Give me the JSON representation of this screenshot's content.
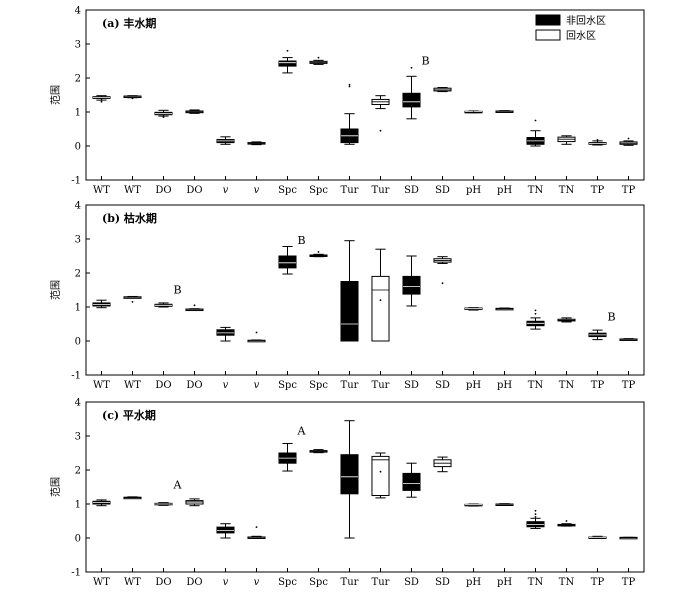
{
  "legend": {
    "placement": "top-right",
    "entries": [
      {
        "name": "非回水区",
        "color": "#000000"
      },
      {
        "name": "回水区",
        "color": "#ffffff"
      }
    ]
  },
  "chart_data": [
    {
      "type": "box",
      "title": "(a) 丰水期",
      "ylabel": "范围",
      "ylim": [
        -1,
        4
      ],
      "yticks": [
        -1,
        0,
        1,
        2,
        3,
        4
      ],
      "grid": false,
      "categories": [
        "WT",
        "WT",
        "DO",
        "DO",
        "v",
        "v",
        "Spc",
        "Spc",
        "Tur",
        "Tur",
        "SD",
        "SD",
        "pH",
        "pH",
        "TN",
        "TN",
        "TP",
        "TP"
      ],
      "series": [
        {
          "name": "非回水区",
          "color": "#000000",
          "boxes": [
            {
              "min": 1.35,
              "q1": 1.4,
              "median": 1.43,
              "q3": 1.45,
              "max": 1.48,
              "outliers": [
                1.3,
                1.35
              ]
            },
            {
              "min": 0.88,
              "q1": 0.92,
              "median": 0.95,
              "q3": 0.99,
              "max": 1.05,
              "outliers": [
                0.85,
                0.88
              ]
            },
            {
              "min": 0.05,
              "q1": 0.1,
              "median": 0.15,
              "q3": 0.19,
              "max": 0.27,
              "outliers": []
            },
            {
              "min": 2.15,
              "q1": 2.35,
              "median": 2.45,
              "q3": 2.5,
              "max": 2.6,
              "outliers": [
                2.8
              ]
            },
            {
              "min": 0.05,
              "q1": 0.1,
              "median": 0.3,
              "q3": 0.5,
              "max": 0.95,
              "outliers": [
                1.8,
                1.75
              ]
            },
            {
              "min": 0.8,
              "q1": 1.15,
              "median": 1.3,
              "q3": 1.55,
              "max": 2.05,
              "outliers": [
                2.3
              ]
            },
            {
              "min": 0.98,
              "q1": 1.0,
              "median": 1.01,
              "q3": 1.02,
              "max": 1.03,
              "outliers": [
                0.99
              ]
            },
            {
              "min": 0.0,
              "q1": 0.05,
              "median": 0.15,
              "q3": 0.25,
              "max": 0.45,
              "outliers": [
                0.75
              ]
            },
            {
              "min": 0.03,
              "q1": 0.05,
              "median": 0.07,
              "q3": 0.1,
              "max": 0.15,
              "outliers": [
                0.18
              ]
            }
          ]
        },
        {
          "name": "回水区",
          "color": "#ffffff",
          "boxes": [
            {
              "min": 1.42,
              "q1": 1.44,
              "median": 1.46,
              "q3": 1.47,
              "max": 1.48,
              "outliers": [
                1.4
              ]
            },
            {
              "min": 0.96,
              "q1": 0.98,
              "median": 1.0,
              "q3": 1.03,
              "max": 1.06,
              "outliers": []
            },
            {
              "min": 0.04,
              "q1": 0.06,
              "median": 0.08,
              "q3": 0.1,
              "max": 0.12,
              "outliers": []
            },
            {
              "min": 2.4,
              "q1": 2.43,
              "median": 2.46,
              "q3": 2.49,
              "max": 2.52,
              "outliers": [
                2.6
              ]
            },
            {
              "min": 1.1,
              "q1": 1.22,
              "median": 1.3,
              "q3": 1.37,
              "max": 1.48,
              "outliers": [
                0.45
              ]
            },
            {
              "min": 1.6,
              "q1": 1.62,
              "median": 1.65,
              "q3": 1.7,
              "max": 1.72,
              "outliers": []
            },
            {
              "min": 1.01,
              "q1": 1.02,
              "median": 1.02,
              "q3": 1.03,
              "max": 1.04,
              "outliers": []
            },
            {
              "min": 0.05,
              "q1": 0.13,
              "median": 0.2,
              "q3": 0.26,
              "max": 0.3,
              "outliers": []
            },
            {
              "min": 0.02,
              "q1": 0.05,
              "median": 0.08,
              "q3": 0.12,
              "max": 0.15,
              "outliers": [
                0.22
              ]
            }
          ]
        }
      ],
      "annotations": [
        {
          "text": "B",
          "category_index": 10,
          "y": 2.4
        }
      ]
    },
    {
      "type": "box",
      "title": "(b) 枯水期",
      "ylabel": "范围",
      "ylim": [
        -1,
        4
      ],
      "yticks": [
        -1,
        0,
        1,
        2,
        3,
        4
      ],
      "grid": false,
      "categories": [
        "WT",
        "WT",
        "DO",
        "DO",
        "v",
        "v",
        "Spc",
        "Spc",
        "Tur",
        "Tur",
        "SD",
        "SD",
        "pH",
        "pH",
        "TN",
        "TN",
        "TP",
        "TP"
      ],
      "series": [
        {
          "name": "非回水区",
          "color": "#000000",
          "boxes": [
            {
              "min": 0.98,
              "q1": 1.03,
              "median": 1.07,
              "q3": 1.12,
              "max": 1.2,
              "outliers": []
            },
            {
              "min": 1.0,
              "q1": 1.02,
              "median": 1.05,
              "q3": 1.08,
              "max": 1.12,
              "outliers": []
            },
            {
              "min": 0.0,
              "q1": 0.17,
              "median": 0.24,
              "q3": 0.33,
              "max": 0.4,
              "outliers": []
            },
            {
              "min": 1.97,
              "q1": 2.15,
              "median": 2.3,
              "q3": 2.5,
              "max": 2.78,
              "outliers": []
            },
            {
              "min": 0.0,
              "q1": 0.0,
              "median": 0.5,
              "q3": 1.75,
              "max": 2.95,
              "outliers": []
            },
            {
              "min": 1.03,
              "q1": 1.38,
              "median": 1.6,
              "q3": 1.9,
              "max": 2.5,
              "outliers": []
            },
            {
              "min": 0.91,
              "q1": 0.93,
              "median": 0.95,
              "q3": 0.97,
              "max": 0.98,
              "outliers": []
            },
            {
              "min": 0.35,
              "q1": 0.45,
              "median": 0.52,
              "q3": 0.58,
              "max": 0.68,
              "outliers": [
                0.9,
                0.8
              ]
            },
            {
              "min": 0.04,
              "q1": 0.13,
              "median": 0.18,
              "q3": 0.23,
              "max": 0.32,
              "outliers": []
            }
          ]
        },
        {
          "name": "回水区",
          "color": "#ffffff",
          "boxes": [
            {
              "min": 1.27,
              "q1": 1.28,
              "median": 1.29,
              "q3": 1.3,
              "max": 1.31,
              "outliers": [
                1.15
              ]
            },
            {
              "min": 0.91,
              "q1": 0.92,
              "median": 0.93,
              "q3": 0.94,
              "max": 0.95,
              "outliers": [
                1.05
              ]
            },
            {
              "min": 0.01,
              "q1": 0.01,
              "median": 0.02,
              "q3": 0.02,
              "max": 0.03,
              "outliers": [
                0.25
              ]
            },
            {
              "min": 2.48,
              "q1": 2.49,
              "median": 2.51,
              "q3": 2.53,
              "max": 2.55,
              "outliers": [
                2.62
              ]
            },
            {
              "min": 0.0,
              "q1": 0.0,
              "median": 1.5,
              "q3": 1.9,
              "max": 2.7,
              "outliers": [
                1.2
              ]
            },
            {
              "min": 2.28,
              "q1": 2.32,
              "median": 2.37,
              "q3": 2.42,
              "max": 2.48,
              "outliers": [
                1.7
              ]
            },
            {
              "min": 0.94,
              "q1": 0.95,
              "median": 0.95,
              "q3": 0.96,
              "max": 0.97,
              "outliers": []
            },
            {
              "min": 0.56,
              "q1": 0.59,
              "median": 0.61,
              "q3": 0.64,
              "max": 0.68,
              "outliers": []
            },
            {
              "min": 0.03,
              "q1": 0.04,
              "median": 0.05,
              "q3": 0.06,
              "max": 0.07,
              "outliers": []
            }
          ]
        }
      ],
      "annotations": [
        {
          "text": "B",
          "category_index": 2,
          "y": 1.4
        },
        {
          "text": "B",
          "category_index": 6,
          "y": 2.85
        },
        {
          "text": "B",
          "category_index": 16,
          "y": 0.6
        }
      ]
    },
    {
      "type": "box",
      "title": "(c) 平水期",
      "ylabel": "范围",
      "ylim": [
        -1,
        4
      ],
      "yticks": [
        -1,
        0,
        1,
        2,
        3,
        4
      ],
      "grid": false,
      "categories": [
        "WT",
        "WT",
        "DO",
        "DO",
        "v",
        "v",
        "Spc",
        "Spc",
        "Tur",
        "Tur",
        "SD",
        "SD",
        "pH",
        "pH",
        "TN",
        "TN",
        "TP",
        "TP"
      ],
      "series": [
        {
          "name": "非回水区",
          "color": "#000000",
          "boxes": [
            {
              "min": 0.95,
              "q1": 1.0,
              "median": 1.04,
              "q3": 1.08,
              "max": 1.12,
              "outliers": []
            },
            {
              "min": 0.96,
              "q1": 0.98,
              "median": 1.0,
              "q3": 1.02,
              "max": 1.04,
              "outliers": []
            },
            {
              "min": 0.0,
              "q1": 0.15,
              "median": 0.22,
              "q3": 0.32,
              "max": 0.42,
              "outliers": []
            },
            {
              "min": 1.97,
              "q1": 2.2,
              "median": 2.35,
              "q3": 2.5,
              "max": 2.78,
              "outliers": []
            },
            {
              "min": 0.0,
              "q1": 1.3,
              "median": 1.8,
              "q3": 2.45,
              "max": 3.45,
              "outliers": []
            },
            {
              "min": 1.2,
              "q1": 1.4,
              "median": 1.6,
              "q3": 1.9,
              "max": 2.2,
              "outliers": []
            },
            {
              "min": 0.94,
              "q1": 0.96,
              "median": 0.98,
              "q3": 0.99,
              "max": 1.0,
              "outliers": []
            },
            {
              "min": 0.28,
              "q1": 0.33,
              "median": 0.4,
              "q3": 0.48,
              "max": 0.58,
              "outliers": [
                0.8,
                0.7,
                0.62
              ]
            },
            {
              "min": 0.0,
              "q1": 0.0,
              "median": 0.02,
              "q3": 0.03,
              "max": 0.05,
              "outliers": []
            }
          ]
        },
        {
          "name": "回水区",
          "color": "#ffffff",
          "boxes": [
            {
              "min": 1.17,
              "q1": 1.18,
              "median": 1.19,
              "q3": 1.2,
              "max": 1.21,
              "outliers": []
            },
            {
              "min": 0.95,
              "q1": 1.0,
              "median": 1.06,
              "q3": 1.1,
              "max": 1.15,
              "outliers": []
            },
            {
              "min": 0.01,
              "q1": 0.01,
              "median": 0.02,
              "q3": 0.03,
              "max": 0.05,
              "outliers": [
                0.32
              ]
            },
            {
              "min": 2.51,
              "q1": 2.53,
              "median": 2.55,
              "q3": 2.57,
              "max": 2.6,
              "outliers": []
            },
            {
              "min": 1.18,
              "q1": 1.25,
              "median": 2.3,
              "q3": 2.4,
              "max": 2.5,
              "outliers": [
                1.95
              ]
            },
            {
              "min": 1.95,
              "q1": 2.1,
              "median": 2.2,
              "q3": 2.3,
              "max": 2.38,
              "outliers": []
            },
            {
              "min": 0.97,
              "q1": 0.98,
              "median": 0.99,
              "q3": 1.0,
              "max": 1.01,
              "outliers": []
            },
            {
              "min": 0.35,
              "q1": 0.37,
              "median": 0.38,
              "q3": 0.4,
              "max": 0.42,
              "outliers": [
                0.5
              ]
            },
            {
              "min": 0.0,
              "q1": 0.01,
              "median": 0.01,
              "q3": 0.02,
              "max": 0.02,
              "outliers": []
            }
          ]
        }
      ],
      "annotations": [
        {
          "text": "A",
          "category_index": 2,
          "y": 1.45
        },
        {
          "text": "A",
          "category_index": 6,
          "y": 3.05
        }
      ]
    }
  ]
}
